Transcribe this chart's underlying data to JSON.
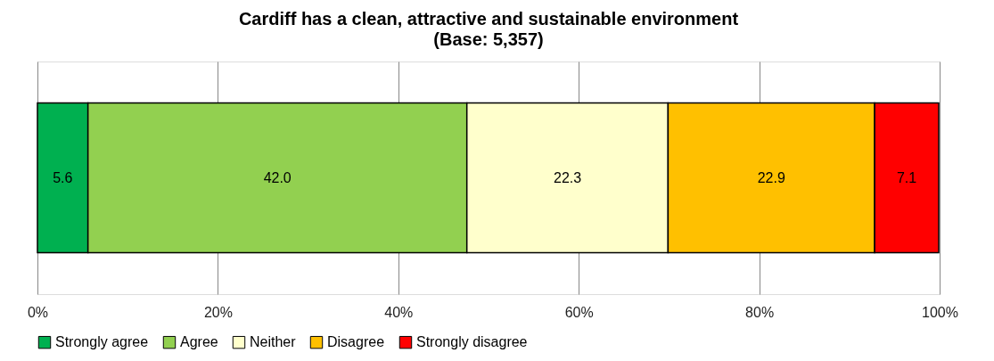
{
  "chart_data": {
    "type": "bar",
    "orientation": "horizontal",
    "stacked": true,
    "title": "Cardiff has a clean, attractive and sustainable environment",
    "subtitle": "(Base: 5,357)",
    "categories": [
      null
    ],
    "series": [
      {
        "name": "Strongly agree",
        "color": "#00b050",
        "values": [
          5.6
        ],
        "value_labels": [
          "5.6"
        ]
      },
      {
        "name": "Agree",
        "color": "#92d050",
        "values": [
          42.0
        ],
        "value_labels": [
          "42.0"
        ]
      },
      {
        "name": "Neither",
        "color": "#ffffcc",
        "values": [
          22.3
        ],
        "value_labels": [
          "22.3"
        ]
      },
      {
        "name": "Disagree",
        "color": "#ffc000",
        "values": [
          22.9
        ],
        "value_labels": [
          "22.9"
        ]
      },
      {
        "name": "Strongly disagree",
        "color": "#ff0000",
        "values": [
          7.1
        ],
        "value_labels": [
          "7.1"
        ]
      }
    ],
    "xlim": [
      0,
      100
    ],
    "xticks": [
      {
        "value": 0,
        "label": "0%"
      },
      {
        "value": 20,
        "label": "20%"
      },
      {
        "value": 40,
        "label": "40%"
      },
      {
        "value": 60,
        "label": "60%"
      },
      {
        "value": 80,
        "label": "80%"
      },
      {
        "value": 100,
        "label": "100%"
      }
    ],
    "grid": "x",
    "legend": "bottom"
  }
}
